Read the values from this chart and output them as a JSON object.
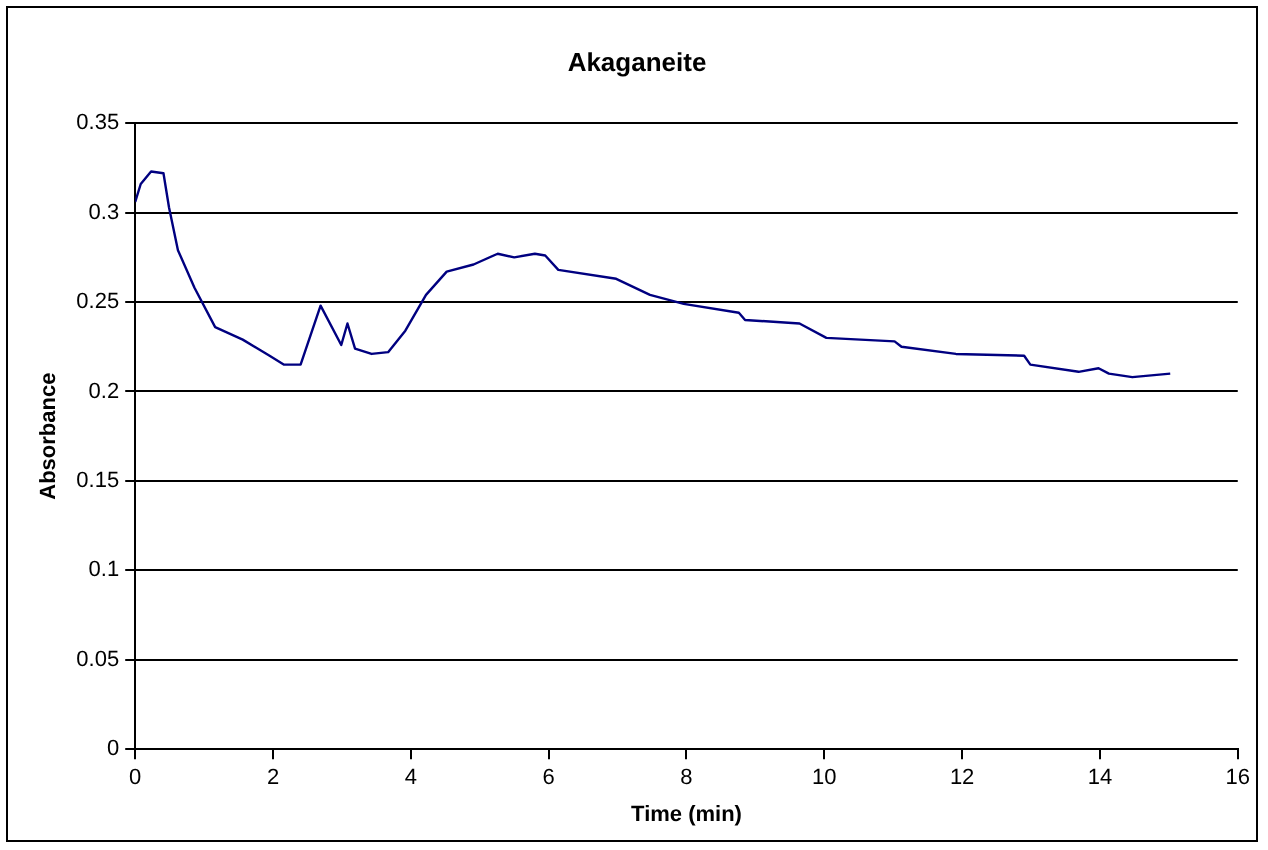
{
  "chart_data": {
    "type": "line",
    "title": "Akaganeite",
    "xlabel": "Time (min)",
    "ylabel": "Absorbance",
    "x": [
      0,
      0.08,
      0.23,
      0.41,
      0.49,
      0.62,
      0.86,
      1.16,
      1.56,
      1.95,
      2.16,
      2.4,
      2.69,
      2.99,
      3.08,
      3.19,
      3.43,
      3.67,
      3.92,
      4.22,
      4.52,
      4.91,
      5.26,
      5.5,
      5.8,
      5.95,
      6.14,
      6.98,
      7.47,
      7.96,
      8.76,
      8.85,
      9.64,
      10.03,
      11.02,
      11.12,
      11.91,
      12.9,
      12.99,
      13.69,
      13.98,
      14.13,
      14.47,
      15.02
    ],
    "series": [
      {
        "color": "#000080",
        "values": [
          0.306,
          0.316,
          0.323,
          0.322,
          0.303,
          0.279,
          0.258,
          0.236,
          0.229,
          0.22,
          0.215,
          0.215,
          0.248,
          0.226,
          0.238,
          0.224,
          0.221,
          0.222,
          0.234,
          0.254,
          0.267,
          0.271,
          0.277,
          0.275,
          0.277,
          0.276,
          0.268,
          0.263,
          0.254,
          0.249,
          0.244,
          0.24,
          0.238,
          0.23,
          0.228,
          0.225,
          0.221,
          0.22,
          0.215,
          0.211,
          0.213,
          0.21,
          0.208,
          0.21
        ]
      }
    ],
    "xlim": [
      0,
      16
    ],
    "xticks": [
      0,
      2,
      4,
      6,
      8,
      10,
      12,
      14,
      16
    ],
    "ylim": [
      0,
      0.35
    ],
    "yticks": [
      0,
      0.05,
      0.1,
      0.15,
      0.2,
      0.25,
      0.3,
      0.35
    ],
    "grid": "y",
    "legend": false,
    "marker": "none",
    "line_style": "solid"
  }
}
